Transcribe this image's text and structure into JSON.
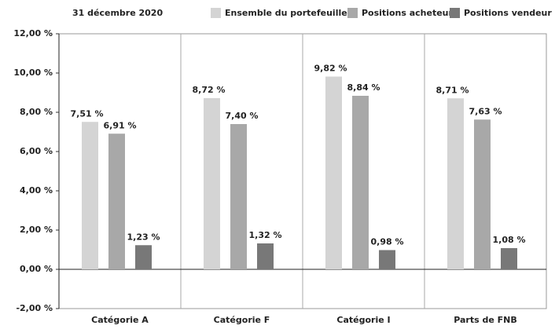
{
  "chart_data": {
    "type": "bar",
    "title": "31 décembre 2020",
    "categories": [
      "Catégorie A",
      "Catégorie F",
      "Catégorie I",
      "Parts de FNB"
    ],
    "series": [
      {
        "name": "Ensemble du portefeuille",
        "color": "#d4d4d4",
        "values": [
          7.51,
          8.72,
          9.82,
          8.71
        ],
        "value_labels": [
          "7,51 %",
          "8,72 %",
          "9,82 %",
          "8,71 %"
        ]
      },
      {
        "name": "Positions acheteur",
        "color": "#a8a8a8",
        "values": [
          6.91,
          7.4,
          8.84,
          7.63
        ],
        "value_labels": [
          "6,91 %",
          "7,40 %",
          "8,84 %",
          "7,63 %"
        ]
      },
      {
        "name": "Positions vendeur",
        "color": "#787878",
        "values": [
          1.23,
          1.32,
          0.98,
          1.08
        ],
        "value_labels": [
          "1,23 %",
          "1,32 %",
          "0,98 %",
          "1,08 %"
        ]
      }
    ],
    "ylim": [
      -2,
      12
    ],
    "yticks": [
      {
        "value": -2,
        "label": "-2,00 %"
      },
      {
        "value": 0,
        "label": "0,00 %"
      },
      {
        "value": 2,
        "label": "2,00 %"
      },
      {
        "value": 4,
        "label": "4,00 %"
      },
      {
        "value": 6,
        "label": "6,00 %"
      },
      {
        "value": 8,
        "label": "8,00 %"
      },
      {
        "value": 10,
        "label": "10,00 %"
      },
      {
        "value": 12,
        "label": "12,00 %"
      }
    ],
    "legend": "top-right"
  }
}
